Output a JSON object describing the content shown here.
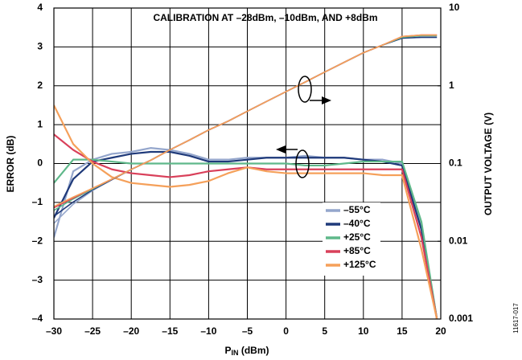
{
  "chart_data": {
    "type": "line",
    "annotation": "CALIBRATION AT –28dBm, –10dBm, AND +8dBm",
    "x_label": "P",
    "x_label_sub": "IN",
    "x_label_unit": " (dBm)",
    "y_label": "ERROR (dB)",
    "y2_label": "OUTPUT VOLTAGE (V)",
    "figure_code": "11617-017",
    "grid": true,
    "y2_log": true,
    "legend": "lower center",
    "xlim": [
      -30,
      20
    ],
    "xticks": [
      {
        "value": -30,
        "label": "–30"
      },
      {
        "value": -25,
        "label": "–25"
      },
      {
        "value": -20,
        "label": "–20"
      },
      {
        "value": -15,
        "label": "–15"
      },
      {
        "value": -10,
        "label": "–10"
      },
      {
        "value": -5,
        "label": "–5"
      },
      0,
      5,
      10,
      15,
      20
    ],
    "ylim": [
      -4,
      4
    ],
    "yticks": [
      {
        "value": -4,
        "label": "–4"
      },
      {
        "value": -3,
        "label": "–3"
      },
      {
        "value": -2,
        "label": "–2"
      },
      {
        "value": -1,
        "label": "–1"
      },
      0,
      1,
      2,
      3,
      4
    ],
    "y2lim": [
      0.001,
      10
    ],
    "y2ticks": [
      0.001,
      0.01,
      0.1,
      1,
      10
    ],
    "x": [
      -30,
      -27.5,
      -25,
      -22.5,
      -20,
      -17.5,
      -15,
      -12.5,
      -10,
      -7.5,
      -5,
      -2.5,
      0,
      2.5,
      5,
      7.5,
      10,
      12.5,
      15,
      17.5,
      19.5
    ],
    "series": [
      {
        "name": "–55°C",
        "color": "#94a6cc",
        "values": [
          -1.9,
          -0.2,
          0.1,
          0.25,
          0.3,
          0.4,
          0.35,
          0.25,
          0.1,
          0.1,
          0.15,
          0.15,
          0.15,
          0.2,
          0.15,
          0.15,
          0.1,
          0.1,
          0,
          -1.6,
          -4
        ]
      },
      {
        "name": "–40°C",
        "color": "#1f3a7a",
        "values": [
          -1.4,
          -0.4,
          0.05,
          0.15,
          0.25,
          0.3,
          0.3,
          0.2,
          0.05,
          0.05,
          0.1,
          0.15,
          0.15,
          0.15,
          0.15,
          0.15,
          0.1,
          0.05,
          -0.05,
          -1.7,
          -4
        ]
      },
      {
        "name": "+25°C",
        "color": "#5fb88a",
        "values": [
          -0.5,
          0.1,
          0.1,
          0.05,
          0,
          0,
          0,
          0,
          0,
          0,
          0,
          0,
          0,
          -0.05,
          -0.05,
          0,
          0.05,
          0.05,
          0.05,
          -1.5,
          -4
        ]
      },
      {
        "name": "+85°C",
        "color": "#d9405a",
        "values": [
          0.75,
          0.35,
          0.05,
          -0.15,
          -0.25,
          -0.3,
          -0.35,
          -0.3,
          -0.2,
          -0.15,
          -0.1,
          -0.15,
          -0.15,
          -0.15,
          -0.15,
          -0.15,
          -0.15,
          -0.15,
          -0.15,
          -1.9,
          -4
        ]
      },
      {
        "name": "+125°C",
        "color": "#f5a05a",
        "values": [
          1.5,
          0.5,
          0,
          -0.35,
          -0.5,
          -0.55,
          -0.6,
          -0.55,
          -0.45,
          -0.25,
          -0.1,
          -0.2,
          -0.25,
          -0.25,
          -0.25,
          -0.25,
          -0.25,
          -0.3,
          -0.3,
          -2.2,
          -4
        ]
      },
      {
        "axis": "y2",
        "color": "#94a6cc",
        "values": [
          0.017,
          0.03,
          0.045,
          0.062,
          0.084,
          0.11,
          0.15,
          0.2,
          0.27,
          0.35,
          0.47,
          0.63,
          0.84,
          1.12,
          1.5,
          2.0,
          2.66,
          3.35,
          4.1,
          4.2,
          4.2
        ]
      },
      {
        "axis": "y2",
        "color": "#1f3a7a",
        "values": [
          0.021,
          0.032,
          0.046,
          0.062,
          0.084,
          0.11,
          0.15,
          0.2,
          0.27,
          0.35,
          0.47,
          0.63,
          0.84,
          1.12,
          1.5,
          2.0,
          2.66,
          3.35,
          4.1,
          4.2,
          4.2
        ]
      },
      {
        "axis": "y2",
        "color": "#5fb88a",
        "values": [
          0.025,
          0.035,
          0.047,
          0.063,
          0.084,
          0.11,
          0.15,
          0.2,
          0.27,
          0.35,
          0.47,
          0.63,
          0.84,
          1.12,
          1.5,
          2.0,
          2.66,
          3.35,
          4.2,
          4.4,
          4.4
        ]
      },
      {
        "axis": "y2",
        "color": "#d9405a",
        "values": [
          0.027,
          0.036,
          0.048,
          0.063,
          0.084,
          0.11,
          0.15,
          0.2,
          0.27,
          0.35,
          0.47,
          0.63,
          0.84,
          1.12,
          1.5,
          2.0,
          2.66,
          3.35,
          4.3,
          4.5,
          4.5
        ]
      },
      {
        "axis": "y2",
        "color": "#f5a05a",
        "values": [
          0.028,
          0.037,
          0.048,
          0.063,
          0.084,
          0.11,
          0.15,
          0.2,
          0.27,
          0.35,
          0.47,
          0.63,
          0.84,
          1.12,
          1.5,
          2.0,
          2.66,
          3.35,
          4.3,
          4.5,
          4.5
        ]
      }
    ]
  }
}
